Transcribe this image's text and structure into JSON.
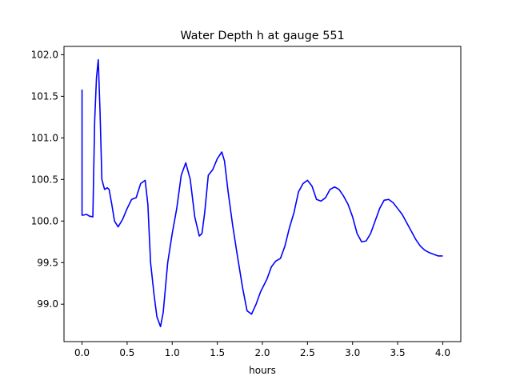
{
  "chart_data": {
    "type": "line",
    "title": "Water Depth h at gauge 551",
    "xlabel": "hours",
    "ylabel": "",
    "xlim": [
      -0.2,
      4.2
    ],
    "ylim": [
      98.55,
      102.1
    ],
    "grid": false,
    "xticks": [
      0.0,
      0.5,
      1.0,
      1.5,
      2.0,
      2.5,
      3.0,
      3.5,
      4.0
    ],
    "xtick_labels": [
      "0.0",
      "0.5",
      "1.0",
      "1.5",
      "2.0",
      "2.5",
      "3.0",
      "3.5",
      "4.0"
    ],
    "yticks": [
      99.0,
      99.5,
      100.0,
      100.5,
      101.0,
      101.5,
      102.0
    ],
    "ytick_labels": [
      "99.0",
      "99.5",
      "100.0",
      "100.5",
      "101.0",
      "101.5",
      "102.0"
    ],
    "series": [
      {
        "color": "#0000ff",
        "x": [
          0.0,
          0.0,
          0.01,
          0.05,
          0.08,
          0.12,
          0.14,
          0.16,
          0.18,
          0.2,
          0.22,
          0.25,
          0.28,
          0.3,
          0.33,
          0.36,
          0.4,
          0.45,
          0.5,
          0.55,
          0.6,
          0.65,
          0.7,
          0.73,
          0.76,
          0.8,
          0.83,
          0.87,
          0.9,
          0.95,
          1.0,
          1.05,
          1.1,
          1.15,
          1.2,
          1.25,
          1.3,
          1.33,
          1.36,
          1.4,
          1.45,
          1.5,
          1.55,
          1.58,
          1.62,
          1.67,
          1.72,
          1.78,
          1.83,
          1.88,
          1.93,
          1.98,
          2.05,
          2.1,
          2.15,
          2.2,
          2.25,
          2.3,
          2.35,
          2.4,
          2.45,
          2.5,
          2.55,
          2.6,
          2.65,
          2.7,
          2.75,
          2.8,
          2.85,
          2.9,
          2.95,
          3.0,
          3.05,
          3.1,
          3.15,
          3.2,
          3.25,
          3.3,
          3.35,
          3.4,
          3.45,
          3.5,
          3.55,
          3.6,
          3.65,
          3.7,
          3.75,
          3.8,
          3.85,
          3.9,
          3.95,
          4.0
        ],
        "y": [
          101.58,
          100.07,
          100.07,
          100.08,
          100.06,
          100.05,
          101.2,
          101.72,
          101.94,
          101.3,
          100.5,
          100.38,
          100.4,
          100.38,
          100.2,
          100.0,
          99.93,
          100.02,
          100.15,
          100.26,
          100.28,
          100.45,
          100.49,
          100.2,
          99.5,
          99.1,
          98.85,
          98.73,
          98.9,
          99.5,
          99.85,
          100.15,
          100.55,
          100.7,
          100.5,
          100.05,
          99.82,
          99.85,
          100.1,
          100.55,
          100.62,
          100.75,
          100.83,
          100.72,
          100.35,
          99.95,
          99.6,
          99.2,
          98.92,
          98.88,
          99.0,
          99.15,
          99.3,
          99.45,
          99.52,
          99.55,
          99.7,
          99.92,
          100.1,
          100.35,
          100.45,
          100.49,
          100.42,
          100.26,
          100.24,
          100.28,
          100.38,
          100.41,
          100.38,
          100.3,
          100.2,
          100.05,
          99.85,
          99.75,
          99.76,
          99.85,
          100.0,
          100.15,
          100.25,
          100.26,
          100.22,
          100.15,
          100.08,
          99.98,
          99.88,
          99.78,
          99.7,
          99.65,
          99.62,
          99.6,
          99.58,
          99.58
        ]
      }
    ]
  }
}
